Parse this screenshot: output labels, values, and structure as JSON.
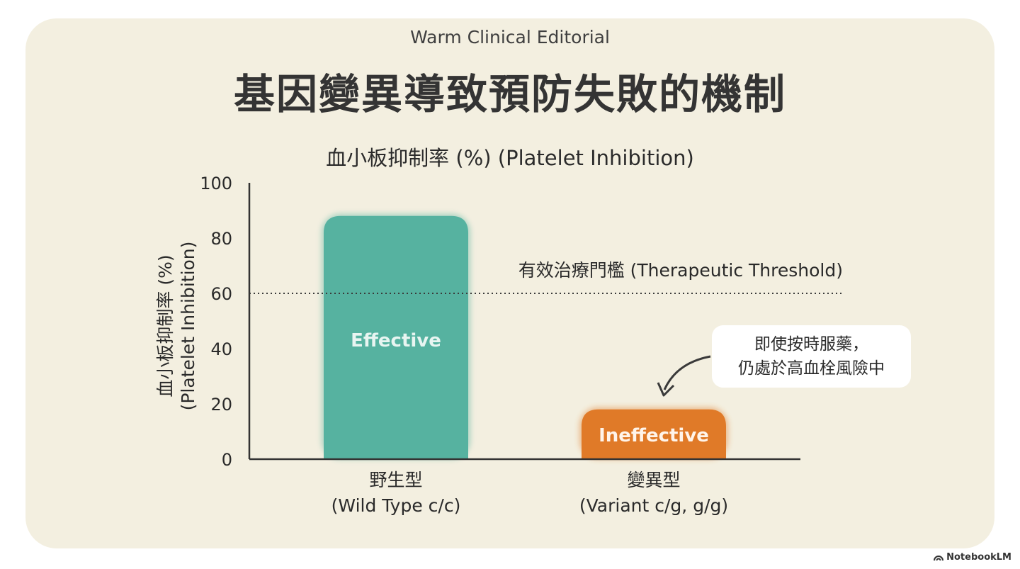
{
  "kicker": "Warm Clinical Editorial",
  "title": "基因變異導致預防失敗的機制",
  "footer": {
    "brand": "NotebookLM",
    "icon": "notebooklm-logo-icon"
  },
  "chart_data": {
    "type": "bar",
    "title": "血小板抑制率 (%) (Platelet Inhibition)",
    "ylabel_line1": "血小板抑制率 (%)",
    "ylabel_line2": "(Platelet Inhibition)",
    "xlabel": "",
    "ylim": [
      0,
      100
    ],
    "yticks": [
      "0",
      "20",
      "40",
      "60",
      "80",
      "100"
    ],
    "grid": false,
    "categories": [
      {
        "name": "野生型",
        "sub": "(Wild Type c/c)"
      },
      {
        "name": "變異型",
        "sub": "(Variant c/g, g/g)"
      }
    ],
    "values": [
      88,
      18
    ],
    "bar_labels": [
      "Effective",
      "Ineffective"
    ],
    "bar_colors": [
      "#56b2a0",
      "#e07a28"
    ],
    "threshold": {
      "value": 60,
      "label": "有效治療門檻 (Therapeutic Threshold)"
    },
    "annotation": {
      "line1": "即使按時服藥，",
      "line2": "仍處於高血栓風險中"
    }
  }
}
